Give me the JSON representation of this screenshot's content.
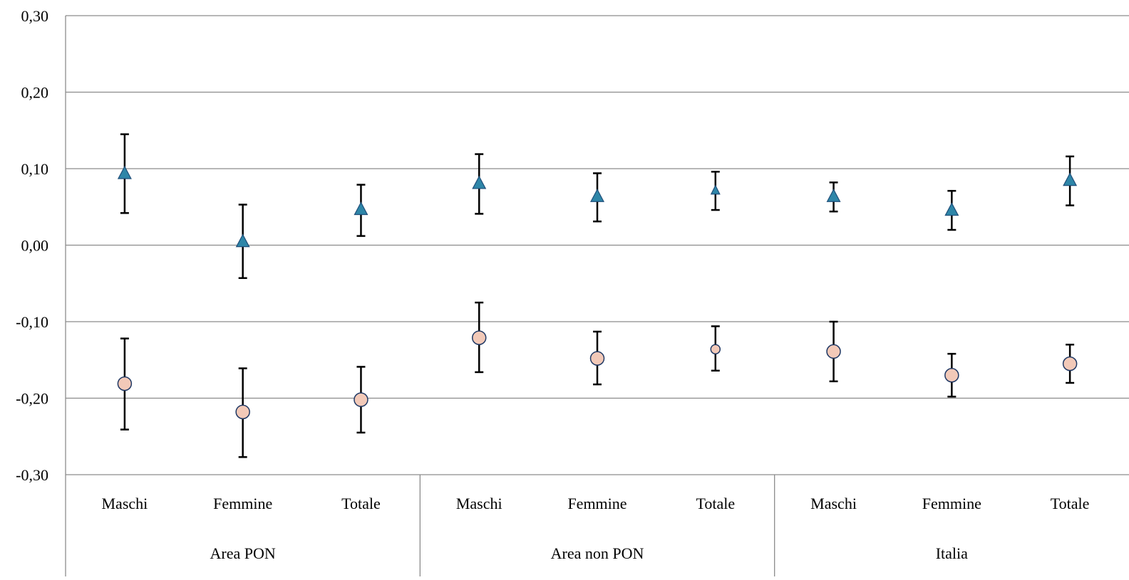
{
  "chart_data": {
    "type": "scatter",
    "title": "",
    "xlabel": "",
    "ylabel": "",
    "ylim": [
      -0.3,
      0.3
    ],
    "yticks": [
      {
        "value": 0.3,
        "label": "0,30"
      },
      {
        "value": 0.2,
        "label": "0,20"
      },
      {
        "value": 0.1,
        "label": "0,10"
      },
      {
        "value": 0.0,
        "label": "0,00"
      },
      {
        "value": -0.1,
        "label": "-0,10"
      },
      {
        "value": -0.2,
        "label": "-0,20"
      },
      {
        "value": -0.3,
        "label": "-0,30"
      }
    ],
    "grid": true,
    "legend": "none",
    "groups": [
      {
        "label": "Area PON",
        "categories": [
          "Maschi",
          "Femmine",
          "Totale"
        ]
      },
      {
        "label": "Area non PON",
        "categories": [
          "Maschi",
          "Femmine",
          "Totale"
        ]
      },
      {
        "label": "Italia",
        "categories": [
          "Maschi",
          "Femmine",
          "Totale"
        ]
      }
    ],
    "series": [
      {
        "marker": "triangle",
        "color": "#2E86A8",
        "values": [
          0.093,
          0.004,
          0.046,
          0.08,
          0.063,
          0.071,
          0.063,
          0.045,
          0.084
        ],
        "lower": [
          0.042,
          -0.043,
          0.012,
          0.041,
          0.031,
          0.046,
          0.044,
          0.02,
          0.052
        ],
        "upper": [
          0.145,
          0.053,
          0.079,
          0.119,
          0.094,
          0.096,
          0.082,
          0.071,
          0.116
        ]
      },
      {
        "marker": "circle",
        "color": "#F2C9B8",
        "values": [
          -0.181,
          -0.218,
          -0.202,
          -0.121,
          -0.148,
          -0.136,
          -0.139,
          -0.17,
          -0.155
        ],
        "lower": [
          -0.241,
          -0.277,
          -0.245,
          -0.166,
          -0.182,
          -0.164,
          -0.178,
          -0.198,
          -0.18
        ],
        "upper": [
          -0.122,
          -0.161,
          -0.159,
          -0.075,
          -0.113,
          -0.106,
          -0.1,
          -0.142,
          -0.13
        ]
      }
    ]
  }
}
